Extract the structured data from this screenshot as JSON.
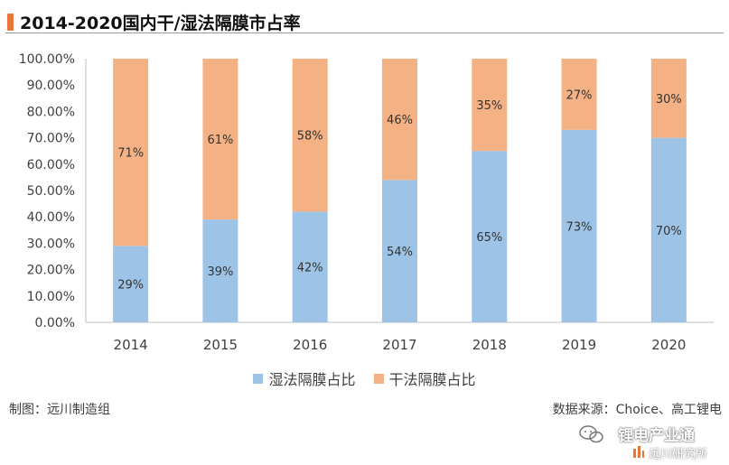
{
  "title": "2014-2020国内干/湿法隔膜市占率",
  "accent_color": "#e8783a",
  "footer": {
    "left": "制图：远川制造组",
    "right": "数据来源：Choice、高工锂电"
  },
  "watermark": {
    "line1": "锂电产业通",
    "line2": "远川研究所"
  },
  "chart_data": {
    "type": "bar",
    "stacked": true,
    "categories": [
      "2014",
      "2015",
      "2016",
      "2017",
      "2018",
      "2019",
      "2020"
    ],
    "series": [
      {
        "name": "湿法隔膜占比",
        "values": [
          29,
          39,
          42,
          54,
          65,
          73,
          70
        ],
        "labels": [
          "29%",
          "39%",
          "42%",
          "54%",
          "65%",
          "73%",
          "70%"
        ],
        "color": "#9dc3e6"
      },
      {
        "name": "干法隔膜占比",
        "values": [
          71,
          61,
          58,
          46,
          35,
          27,
          30
        ],
        "labels": [
          "71%",
          "61%",
          "58%",
          "46%",
          "35%",
          "27%",
          "30%"
        ],
        "color": "#f4b183"
      }
    ],
    "yticks": [
      "0.00%",
      "10.00%",
      "20.00%",
      "30.00%",
      "40.00%",
      "50.00%",
      "60.00%",
      "70.00%",
      "80.00%",
      "90.00%",
      "100.00%"
    ],
    "ylim": [
      0,
      100
    ],
    "grid": false,
    "legend_position": "bottom"
  }
}
